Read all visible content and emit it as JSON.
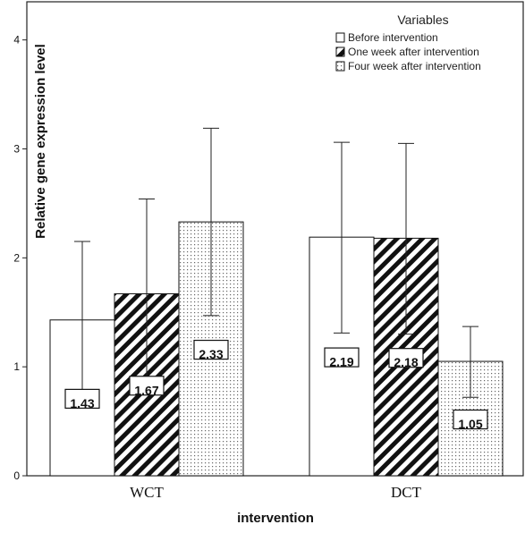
{
  "chart_data": {
    "type": "bar",
    "categories": [
      "WCT",
      "DCT"
    ],
    "series": [
      {
        "name": "Before intervention",
        "pattern": "blank",
        "values": [
          1.43,
          2.19
        ],
        "err_low": [
          0.71,
          1.31
        ],
        "err_high": [
          2.15,
          3.06
        ]
      },
      {
        "name": "One week after intervention",
        "pattern": "diagonal-hatch",
        "values": [
          1.67,
          2.18
        ],
        "err_low": [
          0.8,
          1.3
        ],
        "err_high": [
          2.54,
          3.05
        ]
      },
      {
        "name": "Four week after intervention",
        "pattern": "dots",
        "values": [
          2.33,
          1.05
        ],
        "err_low": [
          1.47,
          0.72
        ],
        "err_high": [
          3.19,
          1.37
        ]
      }
    ],
    "data_labels": [
      [
        "1.43",
        "2.19"
      ],
      [
        "1.67",
        "2.18"
      ],
      [
        "2.33",
        "1.05"
      ]
    ],
    "xlabel": "intervention",
    "ylabel": "Relative gene expression level",
    "ylim": [
      0,
      4.35
    ],
    "yticks": [
      0,
      1,
      2,
      3,
      4
    ],
    "legend": {
      "title": "Variables",
      "position": "top-right"
    },
    "grid": false
  }
}
